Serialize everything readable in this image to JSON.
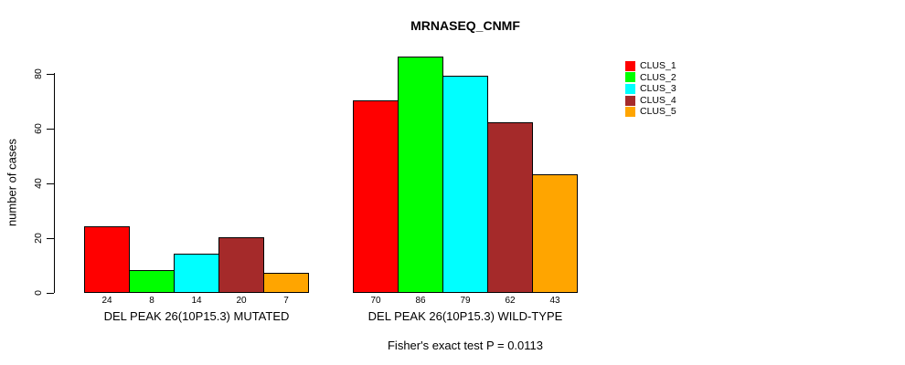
{
  "chart_data": {
    "type": "bar",
    "title": "MRNASEQ_CNMF",
    "xlabel": "",
    "ylabel": "number of cases",
    "ylim": [
      0,
      80
    ],
    "yticks": [
      0,
      20,
      40,
      60,
      80
    ],
    "grid": false,
    "legend_position": "right-outside",
    "bar_border_color": "#000000",
    "groups": [
      {
        "label": "DEL PEAK 26(10P15.3) MUTATED",
        "values": [
          24,
          8,
          14,
          20,
          7
        ]
      },
      {
        "label": "DEL PEAK 26(10P15.3) WILD-TYPE",
        "values": [
          70,
          86,
          79,
          62,
          43
        ]
      }
    ],
    "series": [
      {
        "name": "CLUS_1",
        "color": "#FF0000",
        "values": [
          24,
          70
        ]
      },
      {
        "name": "CLUS_2",
        "color": "#00FF00",
        "values": [
          8,
          86
        ]
      },
      {
        "name": "CLUS_3",
        "color": "#00FFFF",
        "values": [
          14,
          79
        ]
      },
      {
        "name": "CLUS_4",
        "color": "#A52A2A",
        "values": [
          20,
          62
        ]
      },
      {
        "name": "CLUS_5",
        "color": "#FFA500",
        "values": [
          7,
          43
        ]
      }
    ],
    "annotation": "Fisher's exact test P = 0.0113"
  }
}
